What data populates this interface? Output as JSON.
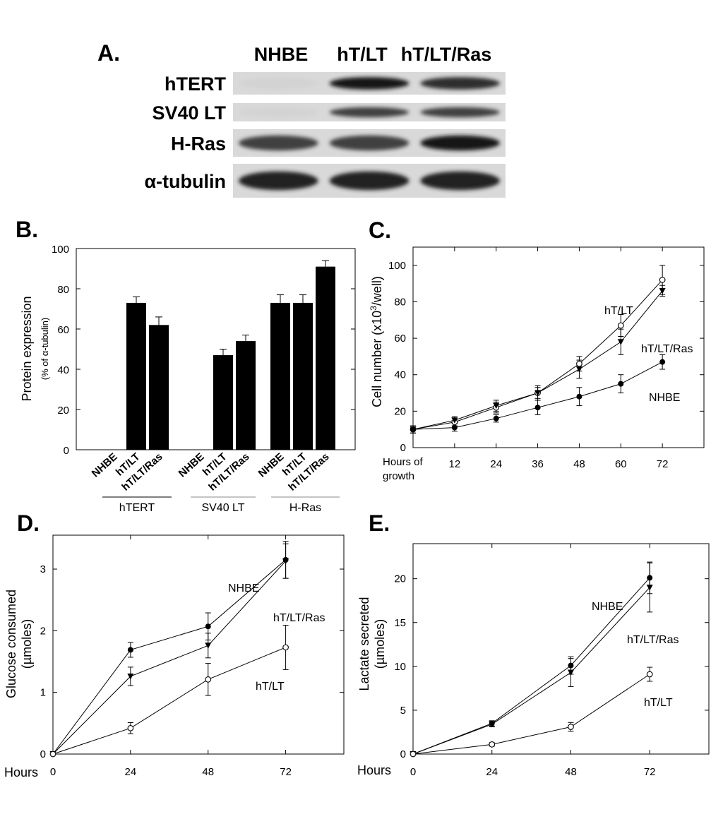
{
  "panel_a": {
    "label": "A.",
    "columns": [
      "NHBE",
      "hT/LT",
      "hT/LT/Ras"
    ],
    "rows": [
      "hTERT",
      "SV40 LT",
      "H-Ras",
      "α-tubulin"
    ],
    "band_intensity": [
      [
        0.02,
        0.95,
        0.85
      ],
      [
        0.02,
        0.75,
        0.75
      ],
      [
        0.75,
        0.75,
        0.95
      ],
      [
        0.9,
        0.9,
        0.9
      ]
    ]
  },
  "chart_data": [
    {
      "panel": "B.",
      "type": "bar",
      "ylabel": "Protein expression",
      "ylabel_sub": "(% of α-tubulin)",
      "ylim": [
        0,
        100
      ],
      "yticks": [
        0,
        20,
        40,
        60,
        80,
        100
      ],
      "groups": [
        {
          "name": "hTERT",
          "categories": [
            "NHBE",
            "hT/LT",
            "hT/LT/Ras"
          ],
          "values": [
            0,
            73,
            62
          ],
          "errors": [
            0,
            3,
            4
          ]
        },
        {
          "name": "SV40 LT",
          "categories": [
            "NHBE",
            "hT/LT",
            "hT/LT/Ras"
          ],
          "values": [
            0,
            47,
            54
          ],
          "errors": [
            0,
            3,
            3
          ]
        },
        {
          "name": "H-Ras",
          "categories": [
            "NHBE",
            "hT/LT",
            "hT/LT/Ras"
          ],
          "values": [
            73,
            73,
            91
          ],
          "errors": [
            4,
            4,
            3
          ]
        }
      ]
    },
    {
      "panel": "C.",
      "type": "line",
      "xlabel": "Hours of growth",
      "ylabel": "Cell number (x10",
      "ylabel_sup": "3",
      "ylabel_tail": "/well)",
      "x": [
        0,
        12,
        24,
        36,
        48,
        60,
        72
      ],
      "xticks": [
        12,
        24,
        36,
        48,
        60,
        72
      ],
      "yticks": [
        0,
        20,
        40,
        60,
        80,
        100
      ],
      "xlim": [
        0,
        84
      ],
      "ylim": [
        0,
        110
      ],
      "series": [
        {
          "name": "hT/LT",
          "marker": "open-circle",
          "values": [
            10,
            14,
            22,
            30,
            46,
            67,
            92
          ],
          "errors": [
            2,
            2,
            3,
            3,
            4,
            6,
            8
          ]
        },
        {
          "name": "hT/LT/Ras",
          "marker": "filled-triangle",
          "values": [
            10,
            15,
            23,
            30,
            43,
            58,
            86
          ],
          "errors": [
            2,
            2,
            3,
            4,
            5,
            7,
            3
          ]
        },
        {
          "name": "NHBE",
          "marker": "filled-circle",
          "values": [
            10,
            11,
            16,
            22,
            28,
            35,
            47
          ],
          "errors": [
            2,
            2,
            2,
            4,
            5,
            5,
            4
          ]
        }
      ]
    },
    {
      "panel": "D.",
      "type": "line",
      "xlabel": "Hours",
      "ylabel": "Glucose consumed",
      "ylabel_sub": "(µmoles)",
      "x": [
        0,
        24,
        48,
        72
      ],
      "xticks": [
        0,
        24,
        48,
        72
      ],
      "yticks": [
        0,
        1,
        2,
        3
      ],
      "xlim": [
        0,
        90
      ],
      "ylim": [
        0,
        3.55
      ],
      "series": [
        {
          "name": "NHBE",
          "marker": "filled-circle",
          "values": [
            0,
            1.69,
            2.07,
            3.15
          ],
          "errors": [
            0,
            0.12,
            0.22,
            0.3
          ]
        },
        {
          "name": "hT/LT/Ras",
          "marker": "filled-triangle",
          "values": [
            0,
            1.26,
            1.76,
            3.13
          ],
          "errors": [
            0,
            0.15,
            0.2,
            0.28
          ]
        },
        {
          "name": "hT/LT",
          "marker": "open-circle",
          "values": [
            0,
            0.42,
            1.21,
            1.73
          ],
          "errors": [
            0,
            0.09,
            0.26,
            0.36
          ]
        }
      ]
    },
    {
      "panel": "E.",
      "type": "line",
      "xlabel": "Hours",
      "ylabel": "Lactate secreted",
      "ylabel_sub": "(µmoles)",
      "x": [
        0,
        24,
        48,
        72
      ],
      "xticks": [
        0,
        24,
        48,
        72
      ],
      "yticks": [
        0,
        5,
        10,
        15,
        20
      ],
      "xlim": [
        0,
        90
      ],
      "ylim": [
        0,
        24
      ],
      "series": [
        {
          "name": "NHBE",
          "marker": "filled-circle",
          "values": [
            0,
            3.5,
            10.1,
            20.1
          ],
          "errors": [
            0,
            0.3,
            1.0,
            1.8
          ]
        },
        {
          "name": "hT/LT/Ras",
          "marker": "filled-triangle",
          "values": [
            0,
            3.4,
            9.3,
            19.0
          ],
          "errors": [
            0,
            0.3,
            1.6,
            2.8
          ]
        },
        {
          "name": "hT/LT",
          "marker": "open-circle",
          "values": [
            0,
            1.1,
            3.1,
            9.1
          ],
          "errors": [
            0,
            0.2,
            0.5,
            0.8
          ]
        }
      ]
    }
  ]
}
